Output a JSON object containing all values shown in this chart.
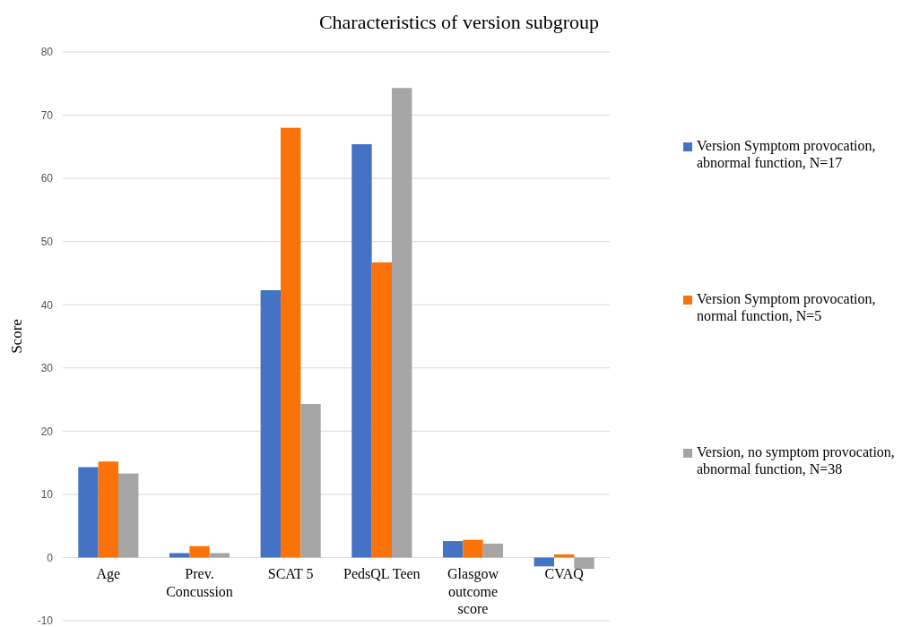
{
  "chart_data": {
    "type": "bar",
    "title": "Characteristics of version subgroup",
    "ylabel": "Score",
    "categories": [
      "Age",
      "Prev. Concussion",
      "SCAT 5",
      "PedsQL Teen",
      "Glasgow outcome score",
      "CVAQ"
    ],
    "series": [
      {
        "name": "Version Symptom provocation, abnormal function, N=17",
        "color": "#4472c4",
        "values": [
          14.3,
          0.7,
          42.3,
          65.4,
          2.6,
          -1.4
        ]
      },
      {
        "name": "Version Symptom provocation, normal function, N=5",
        "color": "#fb7308",
        "values": [
          15.2,
          1.8,
          68,
          46.7,
          2.8,
          0.5
        ]
      },
      {
        "name": "Version, no symptom provocation, abnormal function, N=38",
        "color": "#a5a5a5",
        "values": [
          13.3,
          0.7,
          24.3,
          74.3,
          2.2,
          -1.8
        ]
      }
    ],
    "ylim": [
      -10,
      80
    ],
    "yticks": [
      -10,
      0,
      10,
      20,
      30,
      40,
      50,
      60,
      70,
      80
    ],
    "grid": "y",
    "legend": "right"
  }
}
